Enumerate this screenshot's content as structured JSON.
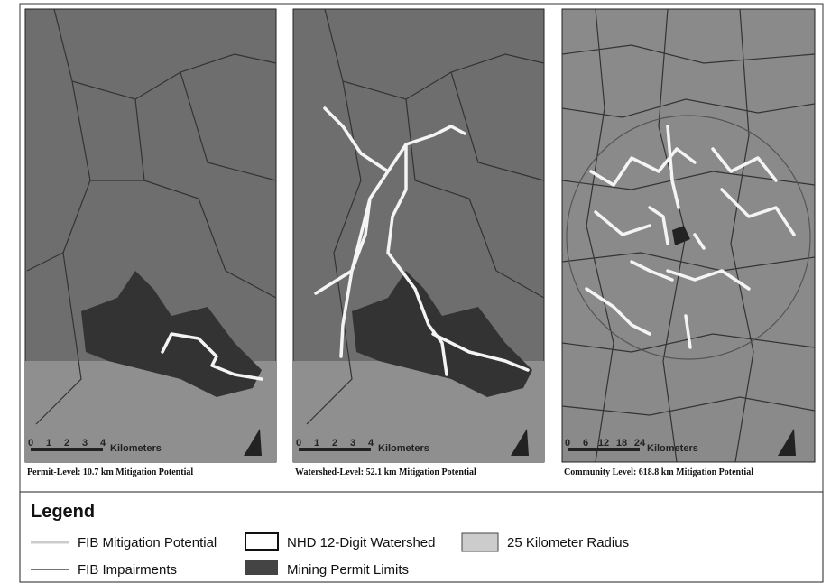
{
  "panels": [
    {
      "scale_ticks": [
        "0",
        "1",
        "2",
        "3",
        "4"
      ],
      "scale_unit": "Kilometers",
      "caption": "Permit-Level: 10.7 km Mitigation Potential"
    },
    {
      "scale_ticks": [
        "0",
        "1",
        "2",
        "3",
        "4"
      ],
      "scale_unit": "Kilometers",
      "caption": "Watershed-Level: 52.1 km Mitigation Potential"
    },
    {
      "scale_ticks": [
        "0",
        "6",
        "12",
        "18",
        "24"
      ],
      "scale_unit": "Kilometers",
      "caption": "Community Level: 618.8 km Mitigation Potential"
    }
  ],
  "legend": {
    "title": "Legend",
    "items": [
      "FIB Mitigation Potential",
      "FIB Impairments",
      "NHD 12-Digit Watershed",
      "Mining Permit Limits",
      "25 Kilometer Radius"
    ]
  }
}
